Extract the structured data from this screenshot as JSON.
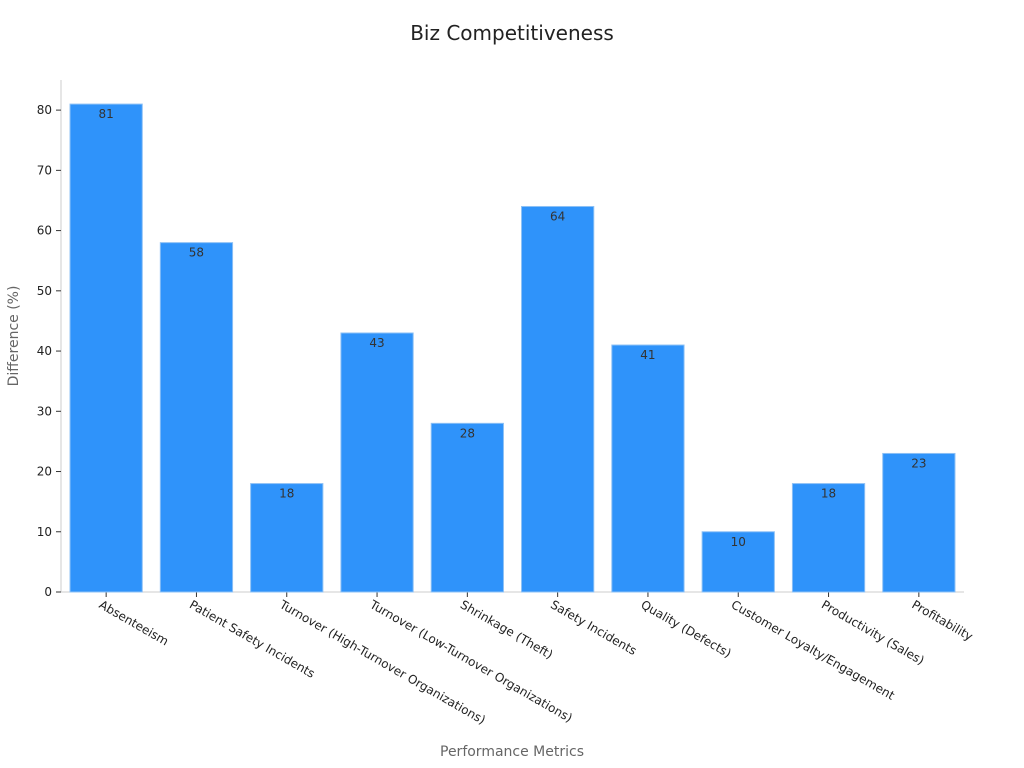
{
  "chart_data": {
    "type": "bar",
    "title": "Biz Competitiveness",
    "xlabel": "Performance Metrics",
    "ylabel": "Difference (%)",
    "categories": [
      "Absenteeism",
      "Patient Safety Incidents",
      "Turnover (High-Turnover Organizations)",
      "Turnover (Low-Turnover Organizations)",
      "Shrinkage (Theft)",
      "Safety Incidents",
      "Quality (Defects)",
      "Customer Loyalty/Engagement",
      "Productivity (Sales)",
      "Profitability"
    ],
    "values": [
      81,
      58,
      18,
      43,
      28,
      64,
      41,
      10,
      18,
      23
    ],
    "ylim": [
      0,
      85
    ],
    "yticks": [
      0,
      10,
      20,
      30,
      40,
      50,
      60,
      70,
      80
    ],
    "grid": false,
    "legend": "none",
    "bar_color": "#2f93fa",
    "bar_edge_color": "#8cc0f5"
  }
}
